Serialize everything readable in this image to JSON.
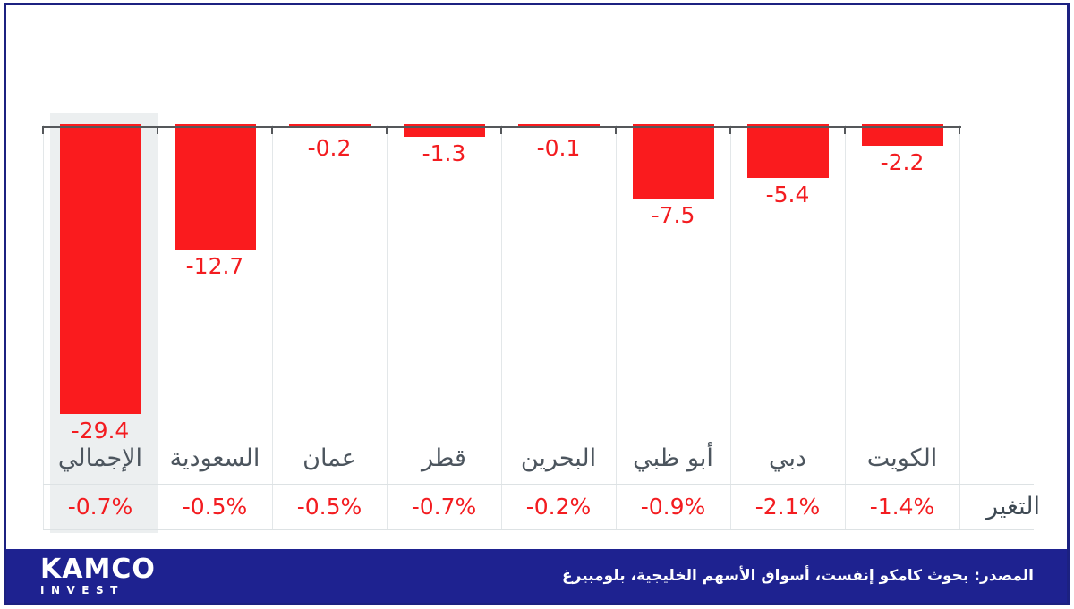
{
  "colors": {
    "bar_red": "#fa1b1e",
    "text_red": "#f31c20",
    "navy": "#1e2290",
    "frame_navy": "#1c2181",
    "label_gray": "#4c555e",
    "axis_gray": "#55585b",
    "highlight_gray": "#eceff0"
  },
  "chart_data": {
    "type": "bar",
    "title": "",
    "orientation": "vertical-negative",
    "direction": "rtl",
    "categories": [
      "الإجمالي",
      "السعودية",
      "عمان",
      "قطر",
      "البحرين",
      "أبو ظبي",
      "دبي",
      "الكويت"
    ],
    "values": [
      -29.4,
      -12.7,
      -0.2,
      -1.3,
      -0.1,
      -7.5,
      -5.4,
      -2.2
    ],
    "value_labels": [
      "-29.4",
      "-12.7",
      "-0.2",
      "-1.3",
      "-0.1",
      "-7.5",
      "-5.4",
      "-2.2"
    ],
    "change_row_label": "التغير",
    "change_values": [
      "-0.7%",
      "-0.5%",
      "-0.5%",
      "-0.7%",
      "-0.2%",
      "-0.9%",
      "-2.1%",
      "-1.4%"
    ],
    "highlighted_index": 0,
    "bar_color": "#fa1b1e",
    "ylim": [
      -30,
      0
    ],
    "y_axis_visible": false,
    "grid": "column-separators",
    "legend": "none"
  },
  "footer": {
    "logo_primary": "KAMCO",
    "logo_secondary": "INVEST",
    "source_text": "المصدر: بحوث كامكو إنفست، أسواق الأسهم الخليجية، بلومبيرغ"
  }
}
